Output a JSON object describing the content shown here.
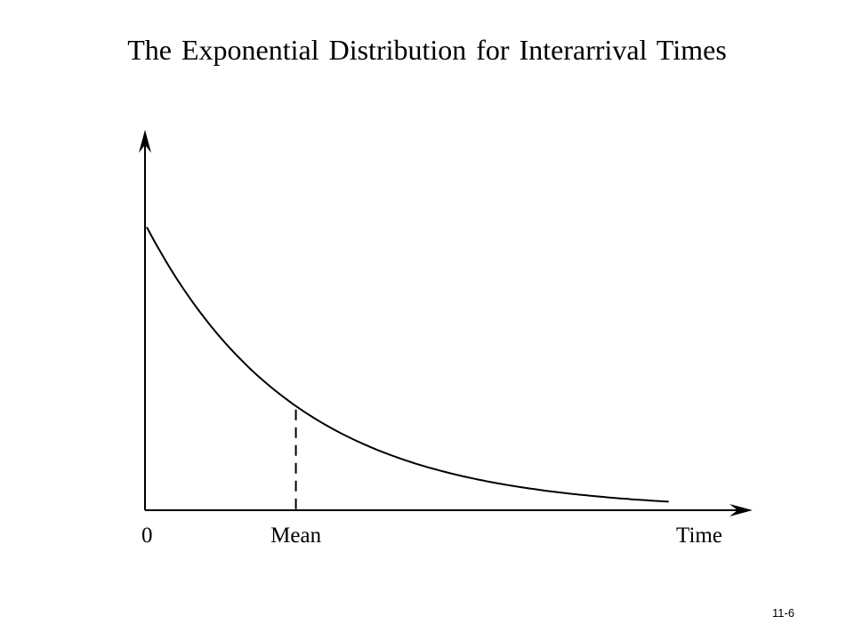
{
  "slide": {
    "title": "The Exponential Distribution for Interarrival Times",
    "number": "11-6"
  },
  "chart_data": {
    "type": "line",
    "title": "The Exponential Distribution for Interarrival Times",
    "distribution": "exponential",
    "mean": 1,
    "xlim": [
      0,
      3.8
    ],
    "ylim": [
      0,
      1.3
    ],
    "x_tick_labels": [
      {
        "label": "0",
        "value": 0
      },
      {
        "label": "Mean",
        "value": 1
      }
    ],
    "xlabel": "Time",
    "ylabel": "",
    "grid": false,
    "legend": "none",
    "series": [
      {
        "x": [
          0,
          0.2,
          0.4,
          0.6,
          0.8,
          1.0,
          1.2,
          1.5,
          1.8,
          2.1,
          2.4,
          2.7,
          3.0,
          3.3,
          3.5
        ],
        "y": [
          1.0,
          0.819,
          0.67,
          0.549,
          0.449,
          0.368,
          0.301,
          0.223,
          0.165,
          0.122,
          0.091,
          0.067,
          0.05,
          0.037,
          0.03
        ]
      }
    ],
    "annotations": [
      {
        "type": "dashed-vertical",
        "at": "Mean",
        "x": 1
      }
    ],
    "line_color": "#000000"
  }
}
